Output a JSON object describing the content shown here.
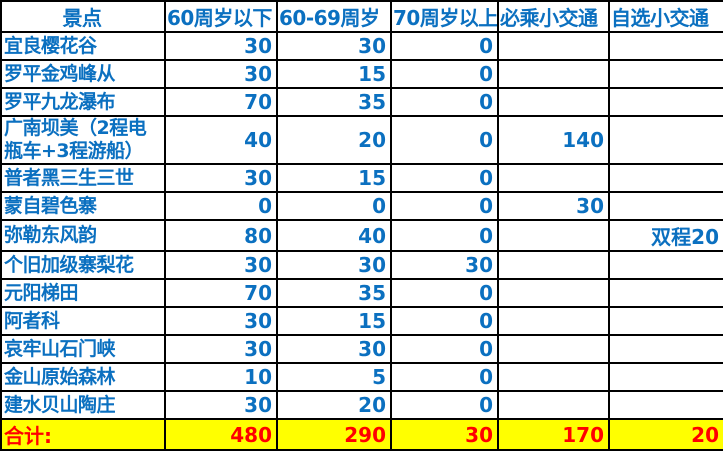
{
  "colors": {
    "text_blue": "#0b70c0",
    "border": "#000000",
    "cell_background": "#ffffff",
    "total_row_background": "#ffff00",
    "total_row_text": "#ff0000"
  },
  "table": {
    "columns": [
      "景点",
      "60周岁以下",
      "60-69周岁",
      "70周岁以上",
      "必乘小交通",
      "自选小交通"
    ],
    "rows": [
      {
        "attraction": "宜良樱花谷",
        "under_60": "30",
        "age_60_69": "30",
        "over_70": "0",
        "required_transport": "",
        "optional_transport": ""
      },
      {
        "attraction": "罗平金鸡峰从",
        "under_60": "30",
        "age_60_69": "15",
        "over_70": "0",
        "required_transport": "",
        "optional_transport": ""
      },
      {
        "attraction": "罗平九龙瀑布",
        "under_60": "70",
        "age_60_69": "35",
        "over_70": "0",
        "required_transport": "",
        "optional_transport": ""
      },
      {
        "attraction": "广南坝美（2程电瓶车+3程游船）",
        "under_60": "40",
        "age_60_69": "20",
        "over_70": "0",
        "required_transport": "140",
        "optional_transport": ""
      },
      {
        "attraction": "普者黑三生三世",
        "under_60": "30",
        "age_60_69": "15",
        "over_70": "0",
        "required_transport": "",
        "optional_transport": ""
      },
      {
        "attraction": "蒙自碧色寨",
        "under_60": "0",
        "age_60_69": "0",
        "over_70": "0",
        "required_transport": "30",
        "optional_transport": ""
      },
      {
        "attraction": "弥勒东风韵",
        "under_60": "80",
        "age_60_69": "40",
        "over_70": "0",
        "required_transport": "",
        "optional_transport": "双程20"
      },
      {
        "attraction": "个旧加级寨梨花",
        "under_60": "30",
        "age_60_69": "30",
        "over_70": "30",
        "required_transport": "",
        "optional_transport": ""
      },
      {
        "attraction": "元阳梯田",
        "under_60": "70",
        "age_60_69": "35",
        "over_70": "0",
        "required_transport": "",
        "optional_transport": ""
      },
      {
        "attraction": "阿者科",
        "under_60": "30",
        "age_60_69": "15",
        "over_70": "0",
        "required_transport": "",
        "optional_transport": ""
      },
      {
        "attraction": "哀牢山石门峡",
        "under_60": "30",
        "age_60_69": "30",
        "over_70": "0",
        "required_transport": "",
        "optional_transport": ""
      },
      {
        "attraction": "金山原始森林",
        "under_60": "10",
        "age_60_69": "5",
        "over_70": "0",
        "required_transport": "",
        "optional_transport": ""
      },
      {
        "attraction": "建水贝山陶庄",
        "under_60": "30",
        "age_60_69": "20",
        "over_70": "0",
        "required_transport": "",
        "optional_transport": ""
      }
    ],
    "total": {
      "label": "合计:",
      "under_60": "480",
      "age_60_69": "290",
      "over_70": "30",
      "required_transport": "170",
      "optional_transport": "20"
    }
  }
}
